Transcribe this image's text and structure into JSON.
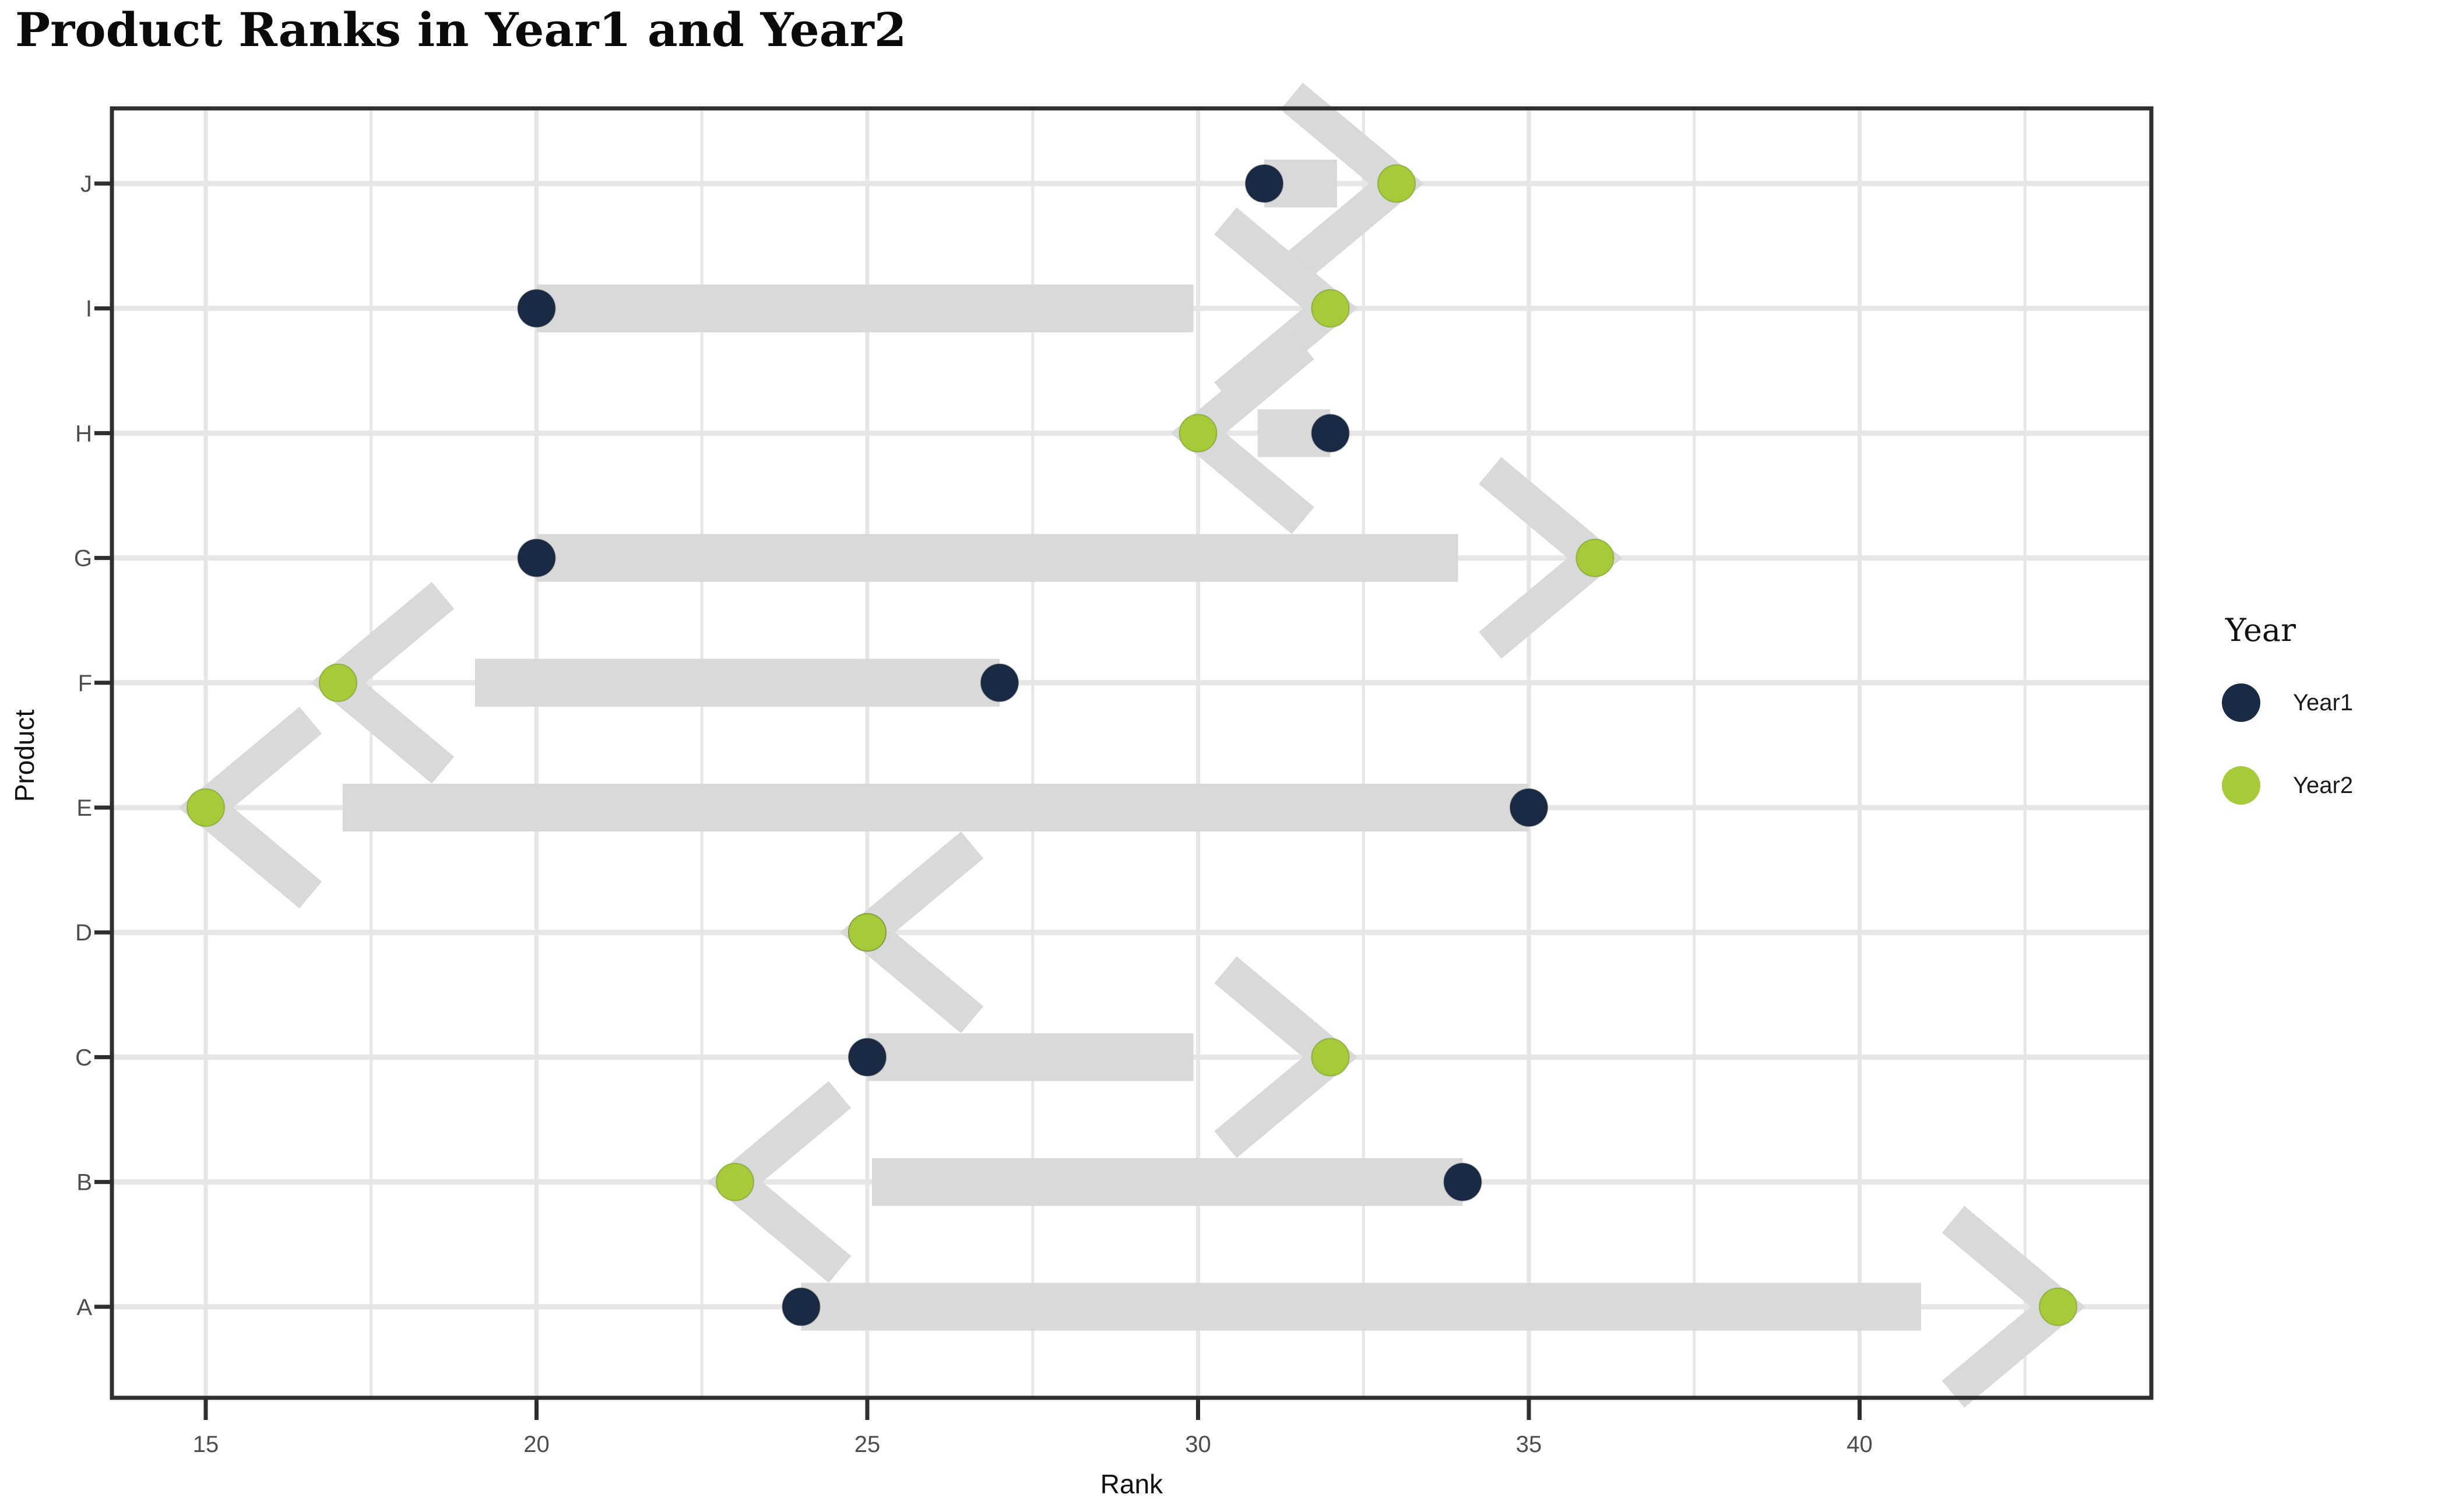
{
  "title": "Product Ranks in Year1 and Year2",
  "axes": {
    "x_label": "Rank",
    "y_label": "Product"
  },
  "legend": {
    "title": "Year",
    "items": [
      {
        "label": "Year1",
        "color": "#1b2a44"
      },
      {
        "label": "Year2",
        "color": "#a7ca3a"
      }
    ]
  },
  "colors": {
    "year1_dot": "#1b2a44",
    "year2_dot": "#a7ca3a",
    "arrow": "#d9d9d9",
    "gridline": "#e6e6e6",
    "panel_border": "#2e2e2e",
    "tick_mark": "#2e2e2e",
    "tick_label": "#4d4d4d"
  },
  "chart_data": {
    "type": "scatter",
    "variant": "dumbbell-arrow",
    "title": "Product Ranks in Year1 and Year2",
    "xlabel": "Rank",
    "ylabel": "Product",
    "xlim": [
      13.6,
      44.4
    ],
    "x_major_ticks": [
      15,
      20,
      25,
      30,
      35,
      40
    ],
    "x_minor_gridlines": [
      17.5,
      22.5,
      27.5,
      32.5,
      37.5,
      42.5
    ],
    "grid": "on",
    "legend_position": "right",
    "categories_top_to_bottom": [
      "J",
      "I",
      "H",
      "G",
      "F",
      "E",
      "D",
      "C",
      "B",
      "A"
    ],
    "series": [
      {
        "name": "Year1",
        "values_top_to_bottom": [
          31,
          20,
          32,
          20,
          27,
          35,
          25,
          25,
          34,
          24
        ]
      },
      {
        "name": "Year2",
        "values_top_to_bottom": [
          33,
          32,
          30,
          36,
          17,
          15,
          25,
          32,
          23,
          43
        ]
      }
    ],
    "rows": [
      {
        "product": "J",
        "year1": 31,
        "year2": 33,
        "arrow": "right"
      },
      {
        "product": "I",
        "year1": 20,
        "year2": 32,
        "arrow": "right"
      },
      {
        "product": "H",
        "year1": 32,
        "year2": 30,
        "arrow": "left"
      },
      {
        "product": "G",
        "year1": 20,
        "year2": 36,
        "arrow": "right"
      },
      {
        "product": "F",
        "year1": 27,
        "year2": 17,
        "arrow": "left"
      },
      {
        "product": "E",
        "year1": 35,
        "year2": 15,
        "arrow": "left"
      },
      {
        "product": "D",
        "year1": 25,
        "year2": 25,
        "arrow": "left"
      },
      {
        "product": "C",
        "year1": 25,
        "year2": 32,
        "arrow": "right"
      },
      {
        "product": "B",
        "year1": 34,
        "year2": 23,
        "arrow": "left"
      },
      {
        "product": "A",
        "year1": 24,
        "year2": 43,
        "arrow": "right"
      }
    ]
  }
}
